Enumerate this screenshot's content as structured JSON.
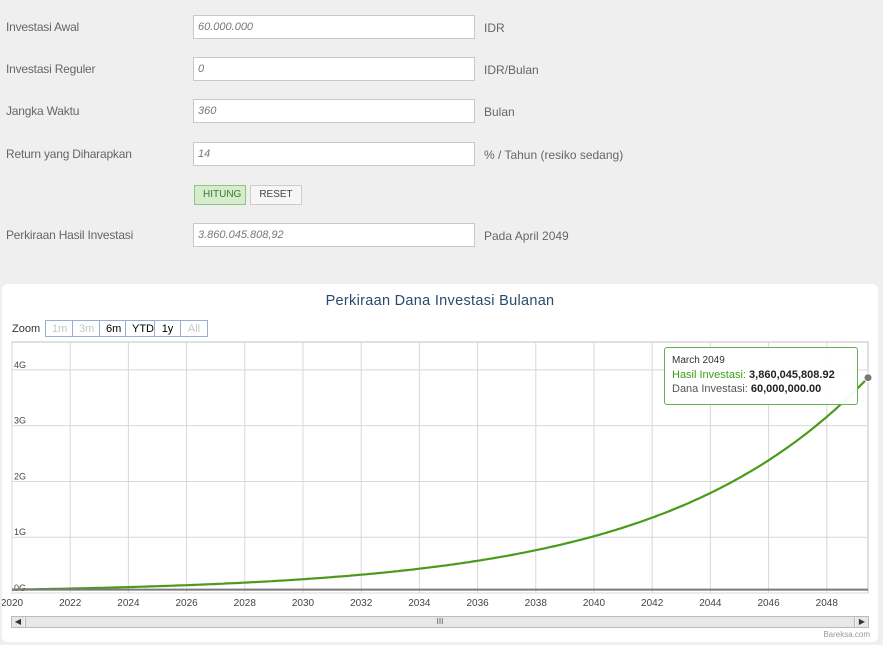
{
  "form": {
    "initial": {
      "label": "Investasi Awal",
      "value": "60.000.000",
      "unit": "IDR"
    },
    "regular": {
      "label": "Investasi Reguler",
      "value": "0",
      "unit": "IDR/Bulan"
    },
    "duration": {
      "label": "Jangka Waktu",
      "value": "360",
      "unit": "Bulan"
    },
    "return": {
      "label": "Return yang Diharapkan",
      "value": "14",
      "unit": "% / Tahun (resiko sedang)"
    },
    "result": {
      "label": "Perkiraan Hasil Investasi",
      "value": "3.860.045.808,92",
      "unit": "Pada April 2049"
    },
    "hitung_label": "HITUNG",
    "reset_label": "RESET"
  },
  "chart": {
    "zoom_label": "Zoom",
    "zoom_buttons": [
      "1m",
      "3m",
      "6m",
      "YTD",
      "1y",
      "All"
    ],
    "credit": "Bareksa.com",
    "scroll_grip": "III",
    "tooltip": {
      "date": "March 2049",
      "hasil_label": "Hasil Investasi",
      "hasil_value": "3,860,045,808.92",
      "dana_label": "Dana Investasi",
      "dana_value": "60,000,000.00"
    }
  },
  "colors": {
    "hasil_line": "#4c9a1a",
    "dana_line": "#7a7a7a",
    "title": "#274b6d",
    "tooltip_border": "#6ab04c"
  },
  "chart_data": {
    "type": "line",
    "title": "Perkiraan Dana Investasi Bulanan",
    "xlabel": "",
    "ylabel": "",
    "x_ticks": [
      "2020",
      "2022",
      "2024",
      "2026",
      "2028",
      "2030",
      "2032",
      "2034",
      "2036",
      "2038",
      "2040",
      "2042",
      "2044",
      "2046",
      "2048"
    ],
    "y_ticks": [
      "0G",
      "1G",
      "2G",
      "3G",
      "4G"
    ],
    "xlim": [
      "2019-10",
      "2049-03"
    ],
    "ylim": [
      0,
      4500000000
    ],
    "grid": true,
    "series": [
      {
        "name": "Hasil Investasi",
        "start": "2019-10",
        "initial": 60000000,
        "annual_rate_pct": 14,
        "end": "2049-03",
        "end_value": 3860045808.92
      },
      {
        "name": "Dana Investasi",
        "values": [
          [
            "2019-10",
            60000000
          ],
          [
            "2049-03",
            60000000
          ]
        ]
      }
    ]
  }
}
